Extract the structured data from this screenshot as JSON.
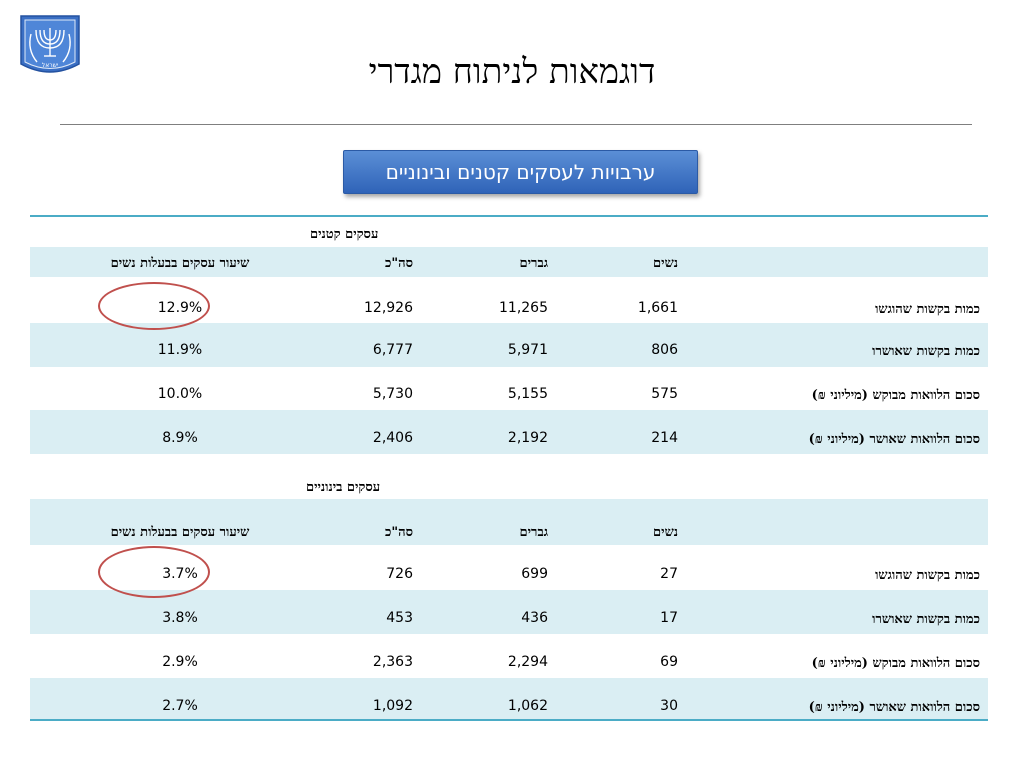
{
  "emblem": {
    "text": "ישראל"
  },
  "title": "דוגמאות לניתוח מגדרי",
  "banner": "ערבויות לעסקים קטנים ובינוניים",
  "small": {
    "section_title": "עסקים קטנים",
    "headers": {
      "women": "נשים",
      "men": "גברים",
      "total": "סה\"כ",
      "share": "שיעור עסקים בבעלות נשים"
    },
    "rows": [
      {
        "label": "כמות בקשות שהוגשו",
        "women": "1,661",
        "men": "11,265",
        "total": "12,926",
        "share": "12.9%"
      },
      {
        "label": "כמות בקשות שאושרו",
        "women": "806",
        "men": "5,971",
        "total": "6,777",
        "share": "11.9%"
      },
      {
        "label": "סכום הלוואות מבוקש (מיליוני ₪)",
        "women": "575",
        "men": "5,155",
        "total": "5,730",
        "share": "10.0%"
      },
      {
        "label": "סכום הלוואות שאושר (מיליוני ₪)",
        "women": "214",
        "men": "2,192",
        "total": "2,406",
        "share": "8.9%"
      }
    ]
  },
  "medium": {
    "section_title": "עסקים בינוניים",
    "headers": {
      "women": "נשים",
      "men": "גברים",
      "total": "סה\"כ",
      "share": "שיעור עסקים בבעלות נשים"
    },
    "rows": [
      {
        "label": "כמות בקשות שהוגשו",
        "women": "27",
        "men": "699",
        "total": "726",
        "share": "3.7%"
      },
      {
        "label": "כמות בקשות שאושרו",
        "women": "17",
        "men": "436",
        "total": "453",
        "share": "3.8%"
      },
      {
        "label": "סכום הלוואות מבוקש (מיליוני ₪)",
        "women": "69",
        "men": "2,294",
        "total": "2,363",
        "share": "2.9%"
      },
      {
        "label": "סכום הלוואות שאושר (מיליוני ₪)",
        "women": "30",
        "men": "1,062",
        "total": "1,092",
        "share": "2.7%"
      }
    ]
  },
  "colors": {
    "accent": "#4bacc6",
    "shade": "#daeef3",
    "banner": "#3f74c6",
    "highlight": "#c0504d"
  }
}
